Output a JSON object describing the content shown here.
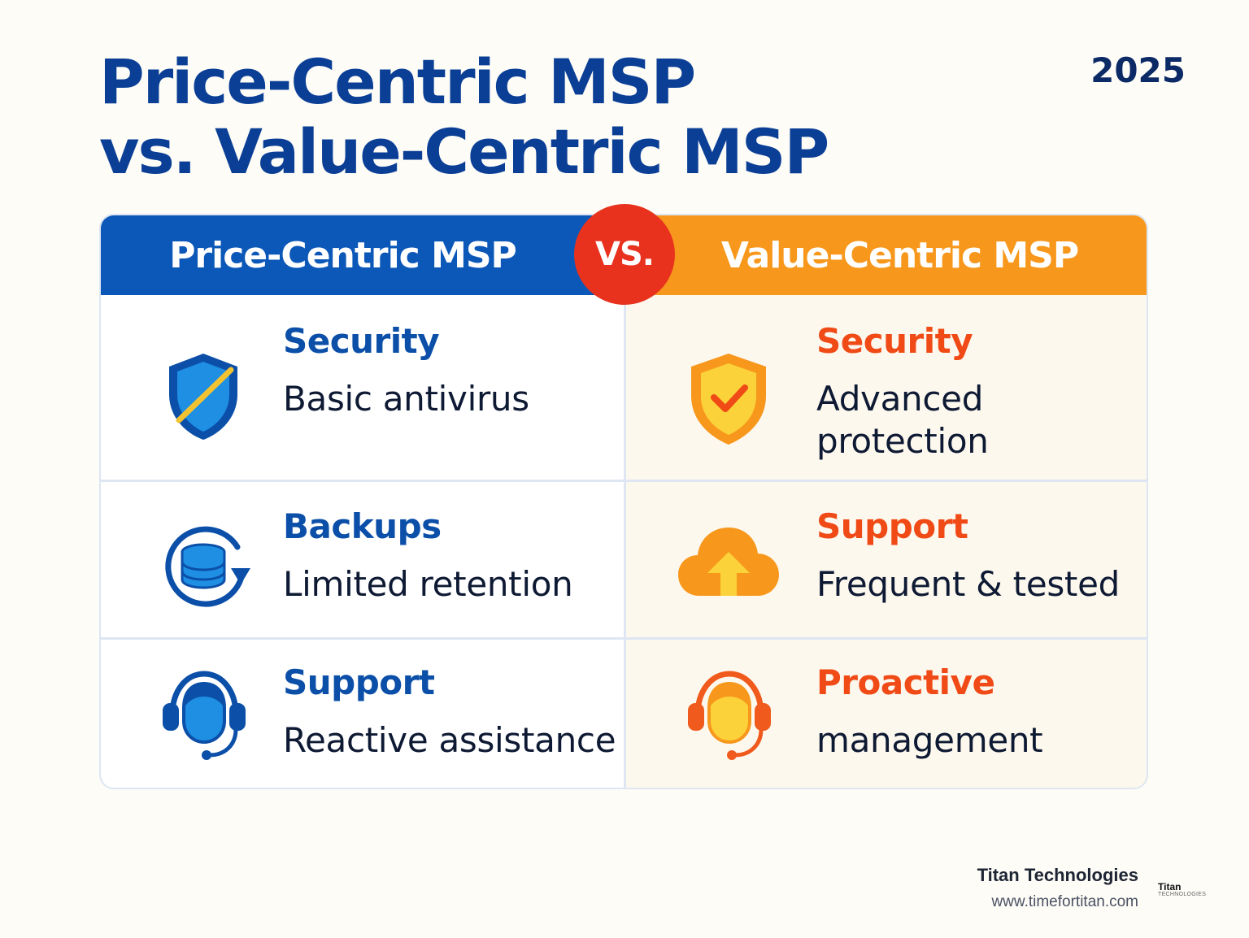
{
  "title": {
    "line1": "Price-Centric MSP",
    "line2": "vs. Value-Centric MSP"
  },
  "year": "2025",
  "table": {
    "left_header": "Price-Centric MSP",
    "right_header": "Value-Centric MSP",
    "vs_label": "VS.",
    "left_rows": [
      {
        "label": "Security",
        "desc": "Basic antivirus",
        "icon": "shield-slash-icon"
      },
      {
        "label": "Backups",
        "desc": "Limited retention",
        "icon": "database-refresh-icon"
      },
      {
        "label": "Support",
        "desc": "Reactive assistance",
        "icon": "headset-agent-icon"
      }
    ],
    "right_rows": [
      {
        "label": "Security",
        "desc_line1": "Advanced",
        "desc_line2": "protection",
        "icon": "shield-check-icon"
      },
      {
        "label": "Support",
        "desc": "Frequent & tested",
        "icon": "cloud-upload-icon"
      },
      {
        "label": "Proactive",
        "desc": "management",
        "icon": "headset-agent-icon"
      }
    ]
  },
  "footer": {
    "company": "Titan Technologies",
    "url": "www.timefortitan.com",
    "logo_top": "Titan",
    "logo_bottom": "TECHNOLOGIES"
  },
  "colors": {
    "blue_header": "#0b58b8",
    "orange_header": "#f7981d",
    "vs_red": "#e8321e",
    "title_blue": "#0b3f96"
  }
}
